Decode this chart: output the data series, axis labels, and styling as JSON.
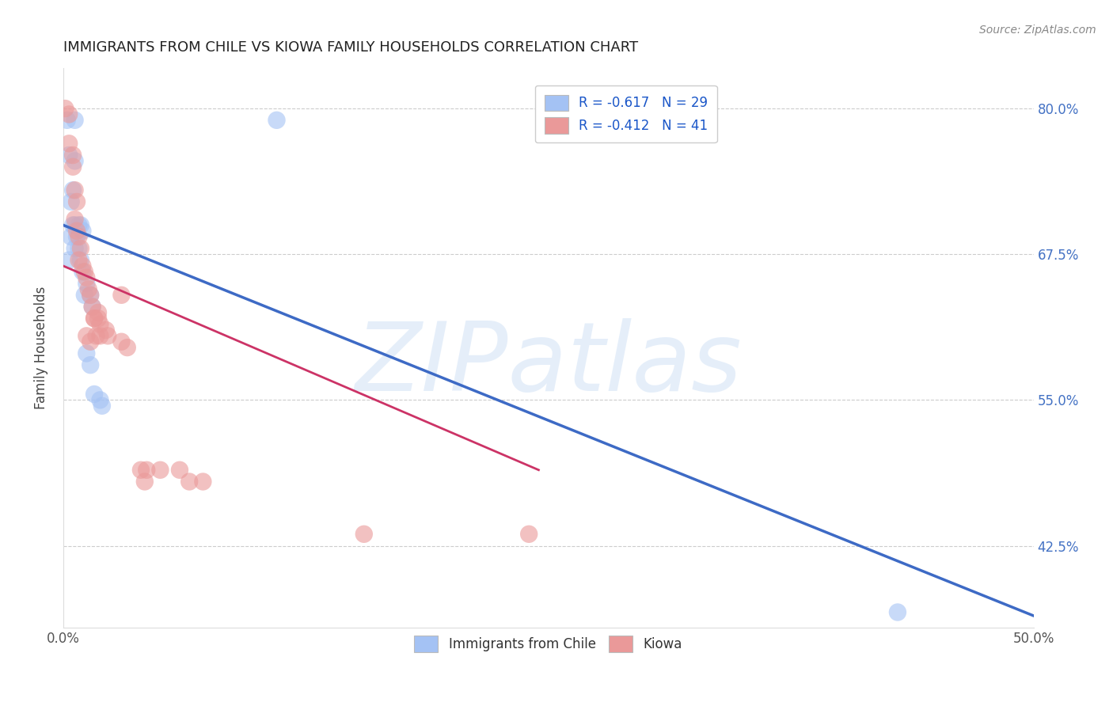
{
  "title": "IMMIGRANTS FROM CHILE VS KIOWA FAMILY HOUSEHOLDS CORRELATION CHART",
  "source": "Source: ZipAtlas.com",
  "ylabel": "Family Households",
  "y_ticks": [
    0.425,
    0.55,
    0.675,
    0.8
  ],
  "y_tick_labels": [
    "42.5%",
    "55.0%",
    "67.5%",
    "80.0%"
  ],
  "x_ticks": [
    0.0,
    0.1,
    0.2,
    0.3,
    0.4,
    0.5
  ],
  "x_tick_labels": [
    "0.0%",
    "",
    "",
    "",
    "",
    "50.0%"
  ],
  "xlim": [
    0.0,
    0.5
  ],
  "ylim": [
    0.355,
    0.835
  ],
  "legend1_text": "R = -0.617   N = 29",
  "legend2_text": "R = -0.412   N = 41",
  "legend_label1": "Immigrants from Chile",
  "legend_label2": "Kiowa",
  "blue_color": "#a4c2f4",
  "pink_color": "#ea9999",
  "line_blue": "#3d6ac5",
  "line_pink": "#cc3366",
  "blue_line_x": [
    0.0,
    0.5
  ],
  "blue_line_y": [
    0.7,
    0.365
  ],
  "pink_line_x": [
    0.0,
    0.245
  ],
  "pink_line_y": [
    0.665,
    0.49
  ],
  "watermark": "ZIPatlas",
  "chile_points": [
    [
      0.002,
      0.79
    ],
    [
      0.006,
      0.79
    ],
    [
      0.003,
      0.76
    ],
    [
      0.006,
      0.755
    ],
    [
      0.005,
      0.73
    ],
    [
      0.004,
      0.72
    ],
    [
      0.005,
      0.7
    ],
    [
      0.004,
      0.69
    ],
    [
      0.007,
      0.69
    ],
    [
      0.006,
      0.68
    ],
    [
      0.003,
      0.67
    ],
    [
      0.006,
      0.7
    ],
    [
      0.008,
      0.7
    ],
    [
      0.009,
      0.7
    ],
    [
      0.01,
      0.695
    ],
    [
      0.008,
      0.68
    ],
    [
      0.009,
      0.67
    ],
    [
      0.01,
      0.66
    ],
    [
      0.012,
      0.65
    ],
    [
      0.011,
      0.64
    ],
    [
      0.014,
      0.64
    ],
    [
      0.015,
      0.63
    ],
    [
      0.012,
      0.59
    ],
    [
      0.014,
      0.58
    ],
    [
      0.016,
      0.555
    ],
    [
      0.019,
      0.55
    ],
    [
      0.02,
      0.545
    ],
    [
      0.11,
      0.79
    ],
    [
      0.43,
      0.368
    ]
  ],
  "kiowa_points": [
    [
      0.001,
      0.8
    ],
    [
      0.003,
      0.795
    ],
    [
      0.003,
      0.77
    ],
    [
      0.005,
      0.76
    ],
    [
      0.005,
      0.75
    ],
    [
      0.006,
      0.73
    ],
    [
      0.007,
      0.72
    ],
    [
      0.006,
      0.705
    ],
    [
      0.007,
      0.695
    ],
    [
      0.008,
      0.69
    ],
    [
      0.009,
      0.68
    ],
    [
      0.01,
      0.665
    ],
    [
      0.011,
      0.66
    ],
    [
      0.012,
      0.655
    ],
    [
      0.013,
      0.645
    ],
    [
      0.014,
      0.64
    ],
    [
      0.015,
      0.63
    ],
    [
      0.016,
      0.62
    ],
    [
      0.018,
      0.625
    ],
    [
      0.019,
      0.615
    ],
    [
      0.012,
      0.605
    ],
    [
      0.014,
      0.6
    ],
    [
      0.016,
      0.62
    ],
    [
      0.017,
      0.605
    ],
    [
      0.018,
      0.62
    ],
    [
      0.019,
      0.605
    ],
    [
      0.008,
      0.67
    ],
    [
      0.03,
      0.64
    ],
    [
      0.022,
      0.61
    ],
    [
      0.023,
      0.605
    ],
    [
      0.03,
      0.6
    ],
    [
      0.033,
      0.595
    ],
    [
      0.04,
      0.49
    ],
    [
      0.042,
      0.48
    ],
    [
      0.043,
      0.49
    ],
    [
      0.05,
      0.49
    ],
    [
      0.06,
      0.49
    ],
    [
      0.065,
      0.48
    ],
    [
      0.072,
      0.48
    ],
    [
      0.155,
      0.435
    ],
    [
      0.24,
      0.435
    ]
  ]
}
